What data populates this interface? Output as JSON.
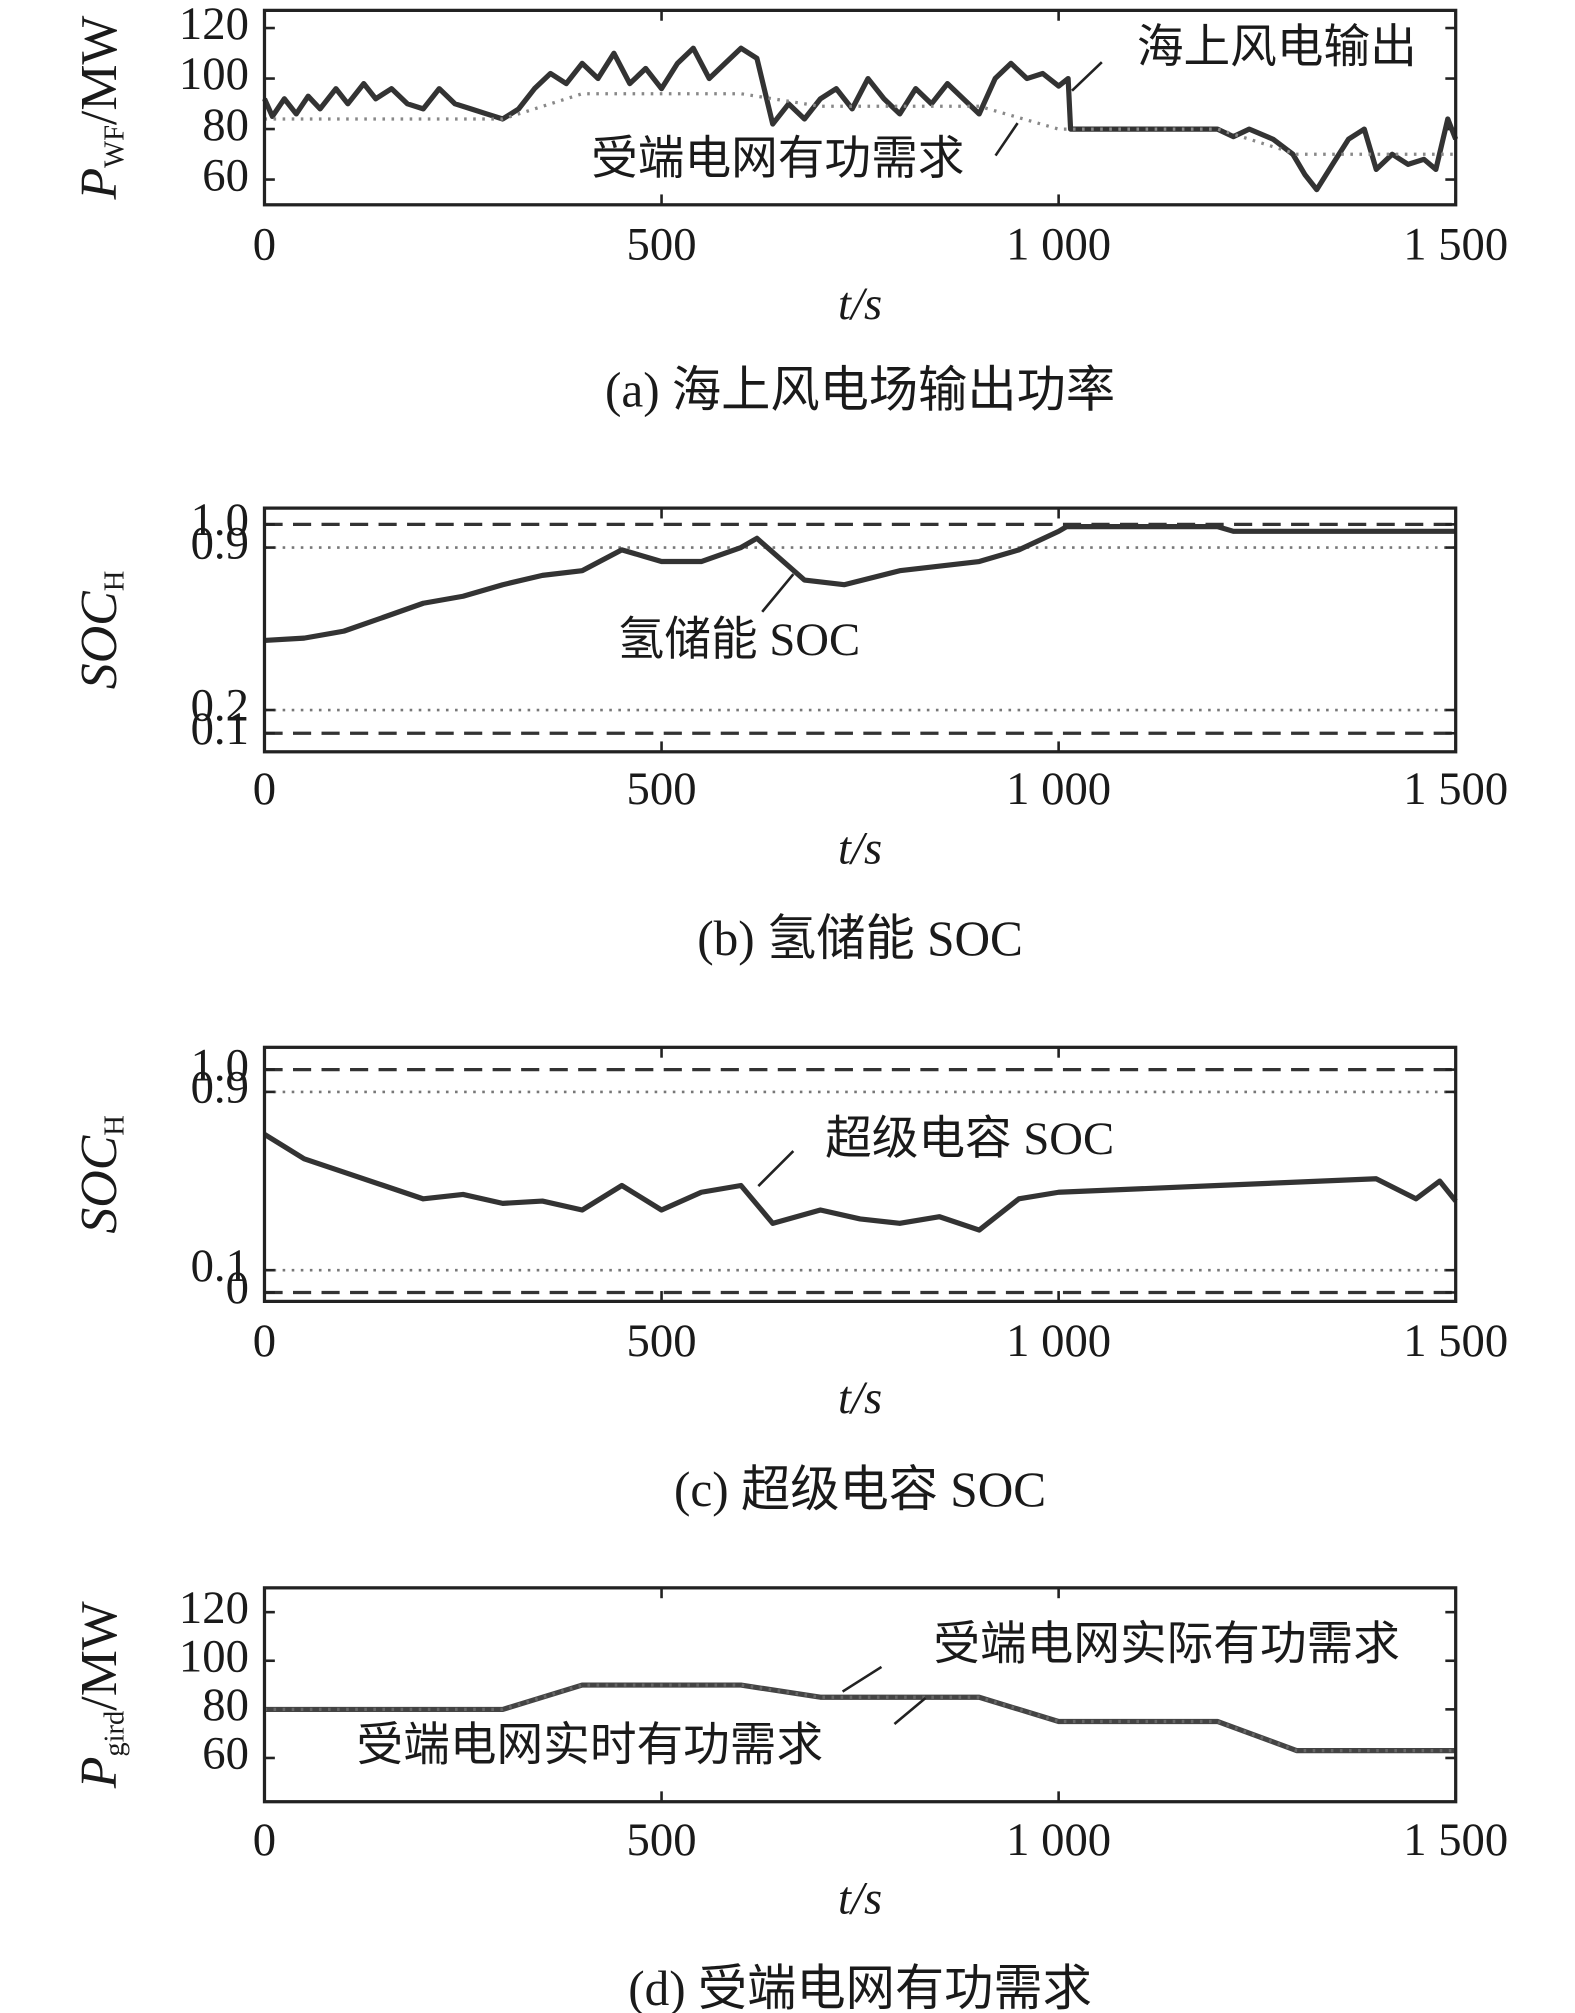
{
  "chart_data": [
    {
      "type": "line",
      "caption": "(a) 海上风电场输出功率",
      "xlabel": "t/s",
      "ylabel": {
        "main": "P",
        "sub": "WF",
        "unit": "/MW"
      },
      "xlim": [
        0,
        1500
      ],
      "xticks": [
        0,
        500,
        {
          "value": 1000,
          "label": "1 000"
        },
        {
          "value": 1500,
          "label": "1 500"
        }
      ],
      "ylim": [
        50,
        127
      ],
      "yticks": [
        60,
        80,
        100,
        120
      ],
      "series": [
        {
          "name": "海上风电输出",
          "color": "#333333",
          "style": "solid",
          "x": [
            0,
            10,
            25,
            40,
            55,
            70,
            90,
            105,
            125,
            140,
            160,
            180,
            200,
            220,
            240,
            260,
            280,
            300,
            320,
            340,
            360,
            380,
            400,
            420,
            440,
            460,
            480,
            500,
            520,
            540,
            560,
            580,
            600,
            620,
            640,
            660,
            680,
            700,
            720,
            740,
            760,
            780,
            800,
            820,
            840,
            860,
            880,
            900,
            920,
            940,
            960,
            980,
            1000,
            1012,
            1015,
            1100,
            1200,
            1220,
            1240,
            1270,
            1295,
            1310,
            1325,
            1345,
            1365,
            1385,
            1400,
            1420,
            1440,
            1460,
            1475,
            1490,
            1500
          ],
          "values": [
            92,
            85,
            92,
            86,
            93,
            88,
            96,
            90,
            98,
            92,
            96,
            90,
            88,
            96,
            90,
            88,
            86,
            84,
            88,
            96,
            102,
            98,
            106,
            100,
            110,
            98,
            104,
            96,
            106,
            112,
            100,
            106,
            112,
            108,
            82,
            90,
            84,
            92,
            96,
            88,
            100,
            92,
            86,
            96,
            90,
            98,
            92,
            86,
            100,
            106,
            100,
            102,
            97,
            100,
            80,
            80,
            80,
            77,
            80,
            76,
            70,
            62,
            56,
            66,
            76,
            80,
            64,
            70,
            66,
            68,
            64,
            84,
            76
          ]
        },
        {
          "name": "受端电网有功需求",
          "color": "#888888",
          "style": "dotted",
          "x": [
            0,
            300,
            400,
            600,
            700,
            900,
            1000,
            1200,
            1300,
            1500
          ],
          "values": [
            84,
            84,
            94,
            94,
            89,
            89,
            80,
            80,
            70,
            70
          ]
        }
      ]
    },
    {
      "type": "line",
      "caption": "(b) 氢储能 SOC",
      "xlabel": "t/s",
      "ylabel": {
        "main": "SOC",
        "sub": "H"
      },
      "xlim": [
        0,
        1500
      ],
      "xticks": [
        0,
        500,
        {
          "value": 1000,
          "label": "1 000"
        },
        {
          "value": 1500,
          "label": "1 500"
        }
      ],
      "ylim": [
        0.02,
        1.07
      ],
      "yticks": [
        0.1,
        0.2,
        0.9,
        {
          "value": 1,
          "label": "1.0"
        }
      ],
      "hlines": [
        {
          "value": 1,
          "style": "dashed"
        },
        {
          "value": 0.9,
          "style": "dotted"
        },
        {
          "value": 0.2,
          "style": "dotted"
        },
        {
          "value": 0.1,
          "style": "dashed"
        }
      ],
      "series": [
        {
          "name": "氢储能 SOC",
          "color": "#333333",
          "style": "solid",
          "x": [
            0,
            50,
            100,
            150,
            200,
            250,
            300,
            350,
            400,
            450,
            480,
            500,
            550,
            600,
            620,
            640,
            680,
            730,
            800,
            900,
            950,
            1000,
            1010,
            1200,
            1220,
            1500
          ],
          "values": [
            0.5,
            0.51,
            0.54,
            0.6,
            0.66,
            0.69,
            0.74,
            0.78,
            0.8,
            0.89,
            0.86,
            0.84,
            0.84,
            0.9,
            0.94,
            0.88,
            0.76,
            0.74,
            0.8,
            0.84,
            0.89,
            0.97,
            0.99,
            0.99,
            0.97,
            0.97
          ]
        }
      ]
    },
    {
      "type": "line",
      "caption": "(c) 超级电容 SOC",
      "xlabel": "t/s",
      "ylabel": {
        "main": "SOC",
        "sub": "H"
      },
      "xlim": [
        0,
        1500
      ],
      "xticks": [
        0,
        500,
        {
          "value": 1000,
          "label": "1 000"
        },
        {
          "value": 1500,
          "label": "1 500"
        }
      ],
      "ylim": [
        -0.04,
        1.1
      ],
      "yticks": [
        0,
        0.1,
        0.9,
        {
          "value": 1,
          "label": "1.0"
        }
      ],
      "hlines": [
        {
          "value": 1,
          "style": "dashed"
        },
        {
          "value": 0.9,
          "style": "dotted"
        },
        {
          "value": 0.1,
          "style": "dotted"
        },
        {
          "value": 0,
          "style": "dashed"
        }
      ],
      "series": [
        {
          "name": "超级电容 SOC",
          "color": "#333333",
          "style": "solid",
          "x": [
            0,
            50,
            100,
            150,
            200,
            250,
            300,
            350,
            400,
            450,
            500,
            550,
            600,
            640,
            700,
            750,
            800,
            850,
            900,
            950,
            1000,
            1200,
            1400,
            1450,
            1480,
            1500
          ],
          "values": [
            0.71,
            0.6,
            0.54,
            0.48,
            0.42,
            0.44,
            0.4,
            0.41,
            0.37,
            0.48,
            0.37,
            0.45,
            0.48,
            0.31,
            0.37,
            0.33,
            0.31,
            0.34,
            0.28,
            0.42,
            0.45,
            0.48,
            0.51,
            0.42,
            0.5,
            0.41
          ]
        }
      ]
    },
    {
      "type": "line",
      "caption": "(d) 受端电网有功需求",
      "xlabel": "t/s",
      "ylabel": {
        "main": "P",
        "sub": "gird",
        "unit": "/MW"
      },
      "xlim": [
        0,
        1500
      ],
      "xticks": [
        0,
        500,
        {
          "value": 1000,
          "label": "1 000"
        },
        {
          "value": 1500,
          "label": "1 500"
        }
      ],
      "ylim": [
        42,
        130
      ],
      "yticks": [
        60,
        80,
        100,
        120
      ],
      "series": [
        {
          "name": "受端电网实际有功需求",
          "color": "#444444",
          "style": "solid",
          "x": [
            0,
            300,
            400,
            600,
            700,
            900,
            1000,
            1200,
            1300,
            1500
          ],
          "values": [
            80,
            80,
            90,
            90,
            85,
            85,
            75,
            75,
            63,
            63
          ]
        },
        {
          "name": "受端电网实时有功需求",
          "color": "#666666",
          "style": "dotted",
          "x": [
            0,
            300,
            400,
            600,
            700,
            900,
            1000,
            1200,
            1300,
            1500
          ],
          "values": [
            80,
            80,
            90,
            90,
            85,
            85,
            75,
            75,
            63,
            63
          ]
        }
      ]
    }
  ]
}
